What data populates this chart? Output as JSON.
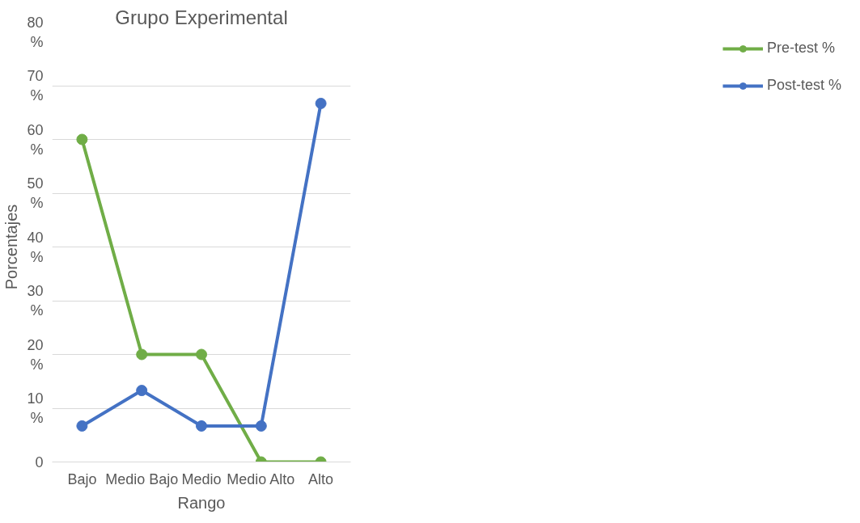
{
  "chart_data": {
    "type": "line",
    "title": "Grupo Experimental",
    "xlabel": "Rango",
    "ylabel": "Porcentajes",
    "categories": [
      "Bajo",
      "Medio Bajo",
      "Medio",
      "Medio Alto",
      "Alto"
    ],
    "series": [
      {
        "name": "Pre-test %",
        "color": "#70ad47",
        "values": [
          60,
          20,
          20,
          0,
          0
        ]
      },
      {
        "name": "Post-test %",
        "color": "#4472c4",
        "values": [
          6.7,
          13.3,
          6.7,
          6.7,
          66.7
        ]
      }
    ],
    "ylim": [
      0,
      80
    ],
    "yticks": [
      {
        "value": 0,
        "label": "0"
      },
      {
        "value": 10,
        "label": "10\n%"
      },
      {
        "value": 20,
        "label": "20\n%"
      },
      {
        "value": 30,
        "label": "30\n%"
      },
      {
        "value": 40,
        "label": "40\n%"
      },
      {
        "value": 50,
        "label": "50\n%"
      },
      {
        "value": 60,
        "label": "60\n%"
      },
      {
        "value": 70,
        "label": "70\n%"
      },
      {
        "value": 80,
        "label": "80\n%"
      }
    ],
    "grid": "y",
    "legend": "right",
    "marker": "circle",
    "line_style": "solid"
  }
}
